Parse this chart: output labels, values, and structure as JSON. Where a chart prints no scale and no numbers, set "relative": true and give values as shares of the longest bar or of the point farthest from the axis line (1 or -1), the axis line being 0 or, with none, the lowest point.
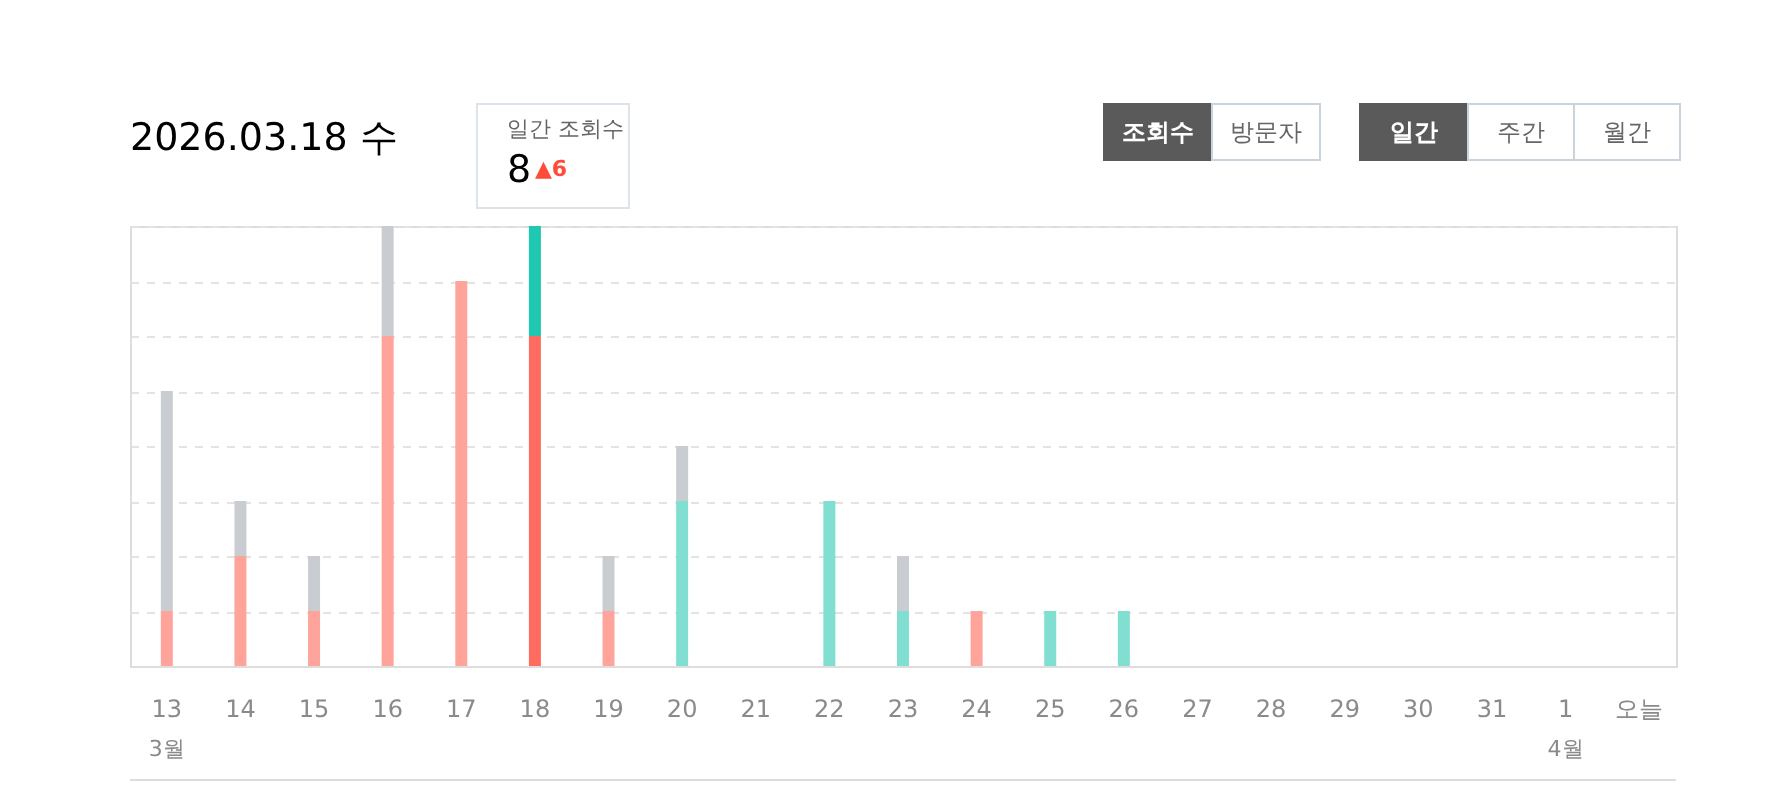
{
  "chart_data": {
    "type": "bar",
    "stacked": true,
    "relative": true,
    "title": "2026.03.18 수",
    "categories": [
      "13",
      "14",
      "15",
      "16",
      "17",
      "18",
      "19",
      "20",
      "21",
      "22",
      "23",
      "24",
      "25",
      "26",
      "27",
      "28",
      "29",
      "30",
      "31",
      "1",
      "오늘"
    ],
    "series": [
      {
        "values": [
          0.125,
          0.25,
          0.125,
          0.75,
          0.875,
          0.75,
          0.125,
          0.375,
          0,
          0.375,
          0.125,
          0.125,
          0.125,
          0.125,
          0,
          0,
          0,
          0,
          0,
          0,
          0
        ],
        "colors": [
          "#ffa49a",
          "#ffa49a",
          "#ffa49a",
          "#ffa49a",
          "#ffa49a",
          "#ff6b5e",
          "#ffa49a",
          "#80dfd0",
          "#80dfd0",
          "#80dfd0",
          "#80dfd0",
          "#ffa49a",
          "#80dfd0",
          "#80dfd0",
          "#80dfd0",
          "#80dfd0",
          "#80dfd0",
          "#80dfd0",
          "#80dfd0",
          "#80dfd0",
          "#80dfd0"
        ]
      },
      {
        "values": [
          0.5,
          0.125,
          0.125,
          0.25,
          0,
          0.25,
          0.125,
          0.125,
          0,
          0,
          0.125,
          0,
          0,
          0,
          0,
          0,
          0,
          0,
          0,
          0,
          0
        ],
        "colors": [
          "#c9cdd2",
          "#c9cdd2",
          "#c9cdd2",
          "#c9cdd2",
          "#c9cdd2",
          "#1fc8b0",
          "#c9cdd2",
          "#c9cdd2",
          "#c9cdd2",
          "#c9cdd2",
          "#c9cdd2",
          "#c9cdd2",
          "#c9cdd2",
          "#c9cdd2",
          "#c9cdd2",
          "#c9cdd2",
          "#c9cdd2",
          "#c9cdd2",
          "#c9cdd2",
          "#c9cdd2",
          "#c9cdd2"
        ]
      }
    ],
    "tick_labels": "x",
    "grid": "y",
    "annotations": [
      "조회수",
      "방문자",
      "일간",
      "주간",
      "월간",
      "일간 조회수",
      "8",
      "▲6",
      "3월",
      "4월"
    ]
  }
}
